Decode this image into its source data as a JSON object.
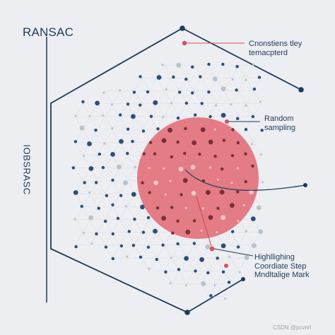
{
  "title": "RANSAC",
  "side_label": "IOBSRASC",
  "annotations": {
    "top_lines": [
      "Cnonstiens tley",
      "temacpterd"
    ],
    "middle_lines": [
      "Random",
      "sampling"
    ],
    "bottom_lines": [
      "Highllighing",
      "Coordiate Step",
      "Mndltalige Mark"
    ]
  },
  "watermark": "CSDN @pcvnrl",
  "colors": {
    "background": "#eceef1",
    "navy": "#1f3b5a",
    "blue_dot": "#2a4f78",
    "light_dot": "#b7c2cd",
    "grid": "#c9d0d8",
    "highlight": "#e2636c",
    "accent_red": "#d9505a"
  }
}
